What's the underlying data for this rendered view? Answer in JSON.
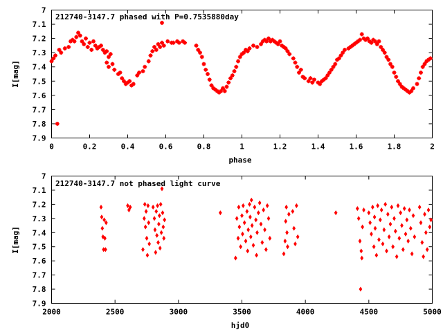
{
  "chart_data": [
    {
      "type": "scatter",
      "title": "212740-3147.7 phased with P=0.7535880day",
      "xlabel": "phase",
      "ylabel": "I[mag]",
      "xlim": [
        0,
        2
      ],
      "ylim": [
        7.9,
        7.0
      ],
      "y_inverted": true,
      "grid": false,
      "marker": "plus",
      "color": "#ff0000",
      "xticks": [
        "0",
        "0.2",
        "0.4",
        "0.6",
        "0.8",
        "1",
        "1.2",
        "1.4",
        "1.6",
        "1.8",
        "2"
      ],
      "yticks": [
        "7",
        "7.1",
        "7.2",
        "7.3",
        "7.4",
        "7.5",
        "7.6",
        "7.7",
        "7.8",
        "7.9"
      ],
      "points": [
        [
          0.0,
          7.36
        ],
        [
          0.01,
          7.34
        ],
        [
          0.02,
          7.32
        ],
        [
          0.03,
          7.8
        ],
        [
          0.04,
          7.28
        ],
        [
          0.05,
          7.3
        ],
        [
          0.07,
          7.27
        ],
        [
          0.09,
          7.26
        ],
        [
          0.1,
          7.22
        ],
        [
          0.11,
          7.21
        ],
        [
          0.12,
          7.22
        ],
        [
          0.13,
          7.19
        ],
        [
          0.14,
          7.16
        ],
        [
          0.15,
          7.18
        ],
        [
          0.16,
          7.22
        ],
        [
          0.17,
          7.24
        ],
        [
          0.18,
          7.2
        ],
        [
          0.19,
          7.26
        ],
        [
          0.2,
          7.23
        ],
        [
          0.21,
          7.28
        ],
        [
          0.22,
          7.22
        ],
        [
          0.23,
          7.25
        ],
        [
          0.24,
          7.27
        ],
        [
          0.25,
          7.26
        ],
        [
          0.26,
          7.25
        ],
        [
          0.27,
          7.28
        ],
        [
          0.28,
          7.3
        ],
        [
          0.29,
          7.29
        ],
        [
          0.3,
          7.33
        ],
        [
          0.31,
          7.31
        ],
        [
          0.29,
          7.37
        ],
        [
          0.3,
          7.4
        ],
        [
          0.32,
          7.38
        ],
        [
          0.33,
          7.42
        ],
        [
          0.35,
          7.45
        ],
        [
          0.36,
          7.44
        ],
        [
          0.37,
          7.48
        ],
        [
          0.38,
          7.5
        ],
        [
          0.39,
          7.52
        ],
        [
          0.4,
          7.51
        ],
        [
          0.41,
          7.5
        ],
        [
          0.42,
          7.53
        ],
        [
          0.43,
          7.52
        ],
        [
          0.45,
          7.46
        ],
        [
          0.46,
          7.44
        ],
        [
          0.48,
          7.43
        ],
        [
          0.49,
          7.4
        ],
        [
          0.51,
          7.36
        ],
        [
          0.52,
          7.32
        ],
        [
          0.53,
          7.29
        ],
        [
          0.54,
          7.26
        ],
        [
          0.55,
          7.28
        ],
        [
          0.56,
          7.24
        ],
        [
          0.57,
          7.26
        ],
        [
          0.58,
          7.23
        ],
        [
          0.58,
          7.09
        ],
        [
          0.59,
          7.25
        ],
        [
          0.61,
          7.22
        ],
        [
          0.63,
          7.23
        ],
        [
          0.64,
          7.23
        ],
        [
          0.66,
          7.22
        ],
        [
          0.67,
          7.23
        ],
        [
          0.69,
          7.22
        ],
        [
          0.7,
          7.23
        ],
        [
          0.76,
          7.25
        ],
        [
          0.77,
          7.28
        ],
        [
          0.78,
          7.3
        ],
        [
          0.79,
          7.33
        ],
        [
          0.8,
          7.38
        ],
        [
          0.81,
          7.42
        ],
        [
          0.82,
          7.45
        ],
        [
          0.83,
          7.49
        ],
        [
          0.84,
          7.53
        ],
        [
          0.85,
          7.55
        ],
        [
          0.86,
          7.56
        ],
        [
          0.87,
          7.57
        ],
        [
          0.88,
          7.58
        ],
        [
          0.89,
          7.57
        ],
        [
          0.9,
          7.55
        ],
        [
          0.91,
          7.57
        ],
        [
          0.92,
          7.54
        ],
        [
          0.93,
          7.51
        ],
        [
          0.94,
          7.48
        ],
        [
          0.95,
          7.46
        ],
        [
          0.96,
          7.43
        ],
        [
          0.97,
          7.4
        ],
        [
          0.98,
          7.36
        ],
        [
          0.99,
          7.33
        ],
        [
          1.0,
          7.31
        ],
        [
          1.01,
          7.3
        ],
        [
          1.02,
          7.28
        ],
        [
          1.03,
          7.29
        ],
        [
          1.04,
          7.27
        ],
        [
          1.06,
          7.25
        ],
        [
          1.08,
          7.26
        ],
        [
          1.1,
          7.24
        ],
        [
          1.11,
          7.22
        ],
        [
          1.12,
          7.21
        ],
        [
          1.13,
          7.22
        ],
        [
          1.14,
          7.2
        ],
        [
          1.15,
          7.22
        ],
        [
          1.16,
          7.21
        ],
        [
          1.17,
          7.22
        ],
        [
          1.18,
          7.23
        ],
        [
          1.19,
          7.24
        ],
        [
          1.2,
          7.22
        ],
        [
          1.21,
          7.25
        ],
        [
          1.22,
          7.26
        ],
        [
          1.23,
          7.27
        ],
        [
          1.24,
          7.29
        ],
        [
          1.25,
          7.31
        ],
        [
          1.27,
          7.34
        ],
        [
          1.28,
          7.37
        ],
        [
          1.29,
          7.4
        ],
        [
          1.3,
          7.44
        ],
        [
          1.31,
          7.42
        ],
        [
          1.32,
          7.47
        ],
        [
          1.33,
          7.48
        ],
        [
          1.35,
          7.5
        ],
        [
          1.36,
          7.48
        ],
        [
          1.37,
          7.51
        ],
        [
          1.38,
          7.49
        ],
        [
          1.4,
          7.51
        ],
        [
          1.41,
          7.52
        ],
        [
          1.42,
          7.5
        ],
        [
          1.43,
          7.49
        ],
        [
          1.44,
          7.48
        ],
        [
          1.45,
          7.46
        ],
        [
          1.46,
          7.44
        ],
        [
          1.47,
          7.42
        ],
        [
          1.48,
          7.4
        ],
        [
          1.49,
          7.38
        ],
        [
          1.5,
          7.35
        ],
        [
          1.51,
          7.34
        ],
        [
          1.52,
          7.32
        ],
        [
          1.53,
          7.3
        ],
        [
          1.54,
          7.28
        ],
        [
          1.56,
          7.27
        ],
        [
          1.57,
          7.26
        ],
        [
          1.58,
          7.25
        ],
        [
          1.59,
          7.24
        ],
        [
          1.6,
          7.23
        ],
        [
          1.61,
          7.22
        ],
        [
          1.62,
          7.21
        ],
        [
          1.63,
          7.17
        ],
        [
          1.64,
          7.2
        ],
        [
          1.65,
          7.21
        ],
        [
          1.66,
          7.2
        ],
        [
          1.67,
          7.22
        ],
        [
          1.68,
          7.23
        ],
        [
          1.69,
          7.21
        ],
        [
          1.7,
          7.22
        ],
        [
          1.71,
          7.24
        ],
        [
          1.72,
          7.22
        ],
        [
          1.73,
          7.26
        ],
        [
          1.74,
          7.28
        ],
        [
          1.75,
          7.3
        ],
        [
          1.76,
          7.33
        ],
        [
          1.77,
          7.35
        ],
        [
          1.78,
          7.38
        ],
        [
          1.79,
          7.4
        ],
        [
          1.8,
          7.44
        ],
        [
          1.81,
          7.47
        ],
        [
          1.82,
          7.5
        ],
        [
          1.83,
          7.52
        ],
        [
          1.84,
          7.54
        ],
        [
          1.85,
          7.55
        ],
        [
          1.86,
          7.56
        ],
        [
          1.87,
          7.57
        ],
        [
          1.88,
          7.58
        ],
        [
          1.89,
          7.57
        ],
        [
          1.9,
          7.55
        ],
        [
          1.92,
          7.52
        ],
        [
          1.93,
          7.48
        ],
        [
          1.94,
          7.44
        ],
        [
          1.95,
          7.4
        ],
        [
          1.96,
          7.38
        ],
        [
          1.97,
          7.36
        ],
        [
          1.98,
          7.35
        ],
        [
          1.99,
          7.34
        ]
      ]
    },
    {
      "type": "scatter",
      "title": "212740-3147.7 not phased light curve",
      "xlabel": "hjd0",
      "ylabel": "I[mag]",
      "xlim": [
        2000,
        5000
      ],
      "ylim": [
        7.9,
        7.0
      ],
      "y_inverted": true,
      "grid": false,
      "marker": "diamond",
      "color": "#ff0000",
      "xticks": [
        "2000",
        "2500",
        "3000",
        "3500",
        "4000",
        "4500",
        "5000"
      ],
      "yticks": [
        "7",
        "7.1",
        "7.2",
        "7.3",
        "7.4",
        "7.5",
        "7.6",
        "7.7",
        "7.8",
        "7.9"
      ],
      "points": [
        [
          2390,
          7.22
        ],
        [
          2395,
          7.29
        ],
        [
          2400,
          7.37
        ],
        [
          2405,
          7.43
        ],
        [
          2410,
          7.52
        ],
        [
          2415,
          7.31
        ],
        [
          2420,
          7.44
        ],
        [
          2425,
          7.52
        ],
        [
          2430,
          7.33
        ],
        [
          2600,
          7.21
        ],
        [
          2610,
          7.24
        ],
        [
          2620,
          7.22
        ],
        [
          2720,
          7.52
        ],
        [
          2730,
          7.3
        ],
        [
          2735,
          7.2
        ],
        [
          2740,
          7.36
        ],
        [
          2745,
          7.25
        ],
        [
          2750,
          7.44
        ],
        [
          2755,
          7.56
        ],
        [
          2760,
          7.21
        ],
        [
          2765,
          7.33
        ],
        [
          2770,
          7.48
        ],
        [
          2800,
          7.22
        ],
        [
          2810,
          7.3
        ],
        [
          2815,
          7.38
        ],
        [
          2820,
          7.54
        ],
        [
          2825,
          7.25
        ],
        [
          2830,
          7.42
        ],
        [
          2835,
          7.21
        ],
        [
          2840,
          7.47
        ],
        [
          2845,
          7.34
        ],
        [
          2850,
          7.28
        ],
        [
          2855,
          7.51
        ],
        [
          2860,
          7.2
        ],
        [
          2865,
          7.4
        ],
        [
          2870,
          7.09
        ],
        [
          2875,
          7.26
        ],
        [
          2880,
          7.36
        ],
        [
          2885,
          7.44
        ],
        [
          2890,
          7.31
        ],
        [
          3330,
          7.26
        ],
        [
          3450,
          7.58
        ],
        [
          3460,
          7.3
        ],
        [
          3470,
          7.44
        ],
        [
          3475,
          7.22
        ],
        [
          3480,
          7.36
        ],
        [
          3490,
          7.5
        ],
        [
          3500,
          7.28
        ],
        [
          3505,
          7.41
        ],
        [
          3510,
          7.21
        ],
        [
          3520,
          7.33
        ],
        [
          3530,
          7.46
        ],
        [
          3540,
          7.25
        ],
        [
          3545,
          7.53
        ],
        [
          3550,
          7.38
        ],
        [
          3560,
          7.2
        ],
        [
          3565,
          7.29
        ],
        [
          3570,
          7.43
        ],
        [
          3575,
          7.17
        ],
        [
          3580,
          7.35
        ],
        [
          3590,
          7.49
        ],
        [
          3600,
          7.22
        ],
        [
          3610,
          7.31
        ],
        [
          3615,
          7.56
        ],
        [
          3620,
          7.4
        ],
        [
          3630,
          7.26
        ],
        [
          3640,
          7.19
        ],
        [
          3650,
          7.34
        ],
        [
          3660,
          7.47
        ],
        [
          3670,
          7.24
        ],
        [
          3680,
          7.38
        ],
        [
          3690,
          7.52
        ],
        [
          3700,
          7.21
        ],
        [
          3710,
          7.3
        ],
        [
          3720,
          7.44
        ],
        [
          3830,
          7.55
        ],
        [
          3840,
          7.46
        ],
        [
          3845,
          7.32
        ],
        [
          3850,
          7.22
        ],
        [
          3855,
          7.4
        ],
        [
          3860,
          7.5
        ],
        [
          3870,
          7.27
        ],
        [
          3900,
          7.25
        ],
        [
          3910,
          7.37
        ],
        [
          3920,
          7.48
        ],
        [
          3930,
          7.21
        ],
        [
          3940,
          7.43
        ],
        [
          4240,
          7.26
        ],
        [
          4410,
          7.23
        ],
        [
          4420,
          7.3
        ],
        [
          4430,
          7.46
        ],
        [
          4435,
          7.8
        ],
        [
          4440,
          7.53
        ],
        [
          4445,
          7.58
        ],
        [
          4450,
          7.36
        ],
        [
          4460,
          7.24
        ],
        [
          4500,
          7.26
        ],
        [
          4510,
          7.33
        ],
        [
          4520,
          7.41
        ],
        [
          4530,
          7.22
        ],
        [
          4540,
          7.5
        ],
        [
          4545,
          7.29
        ],
        [
          4550,
          7.37
        ],
        [
          4560,
          7.56
        ],
        [
          4570,
          7.21
        ],
        [
          4580,
          7.45
        ],
        [
          4590,
          7.31
        ],
        [
          4600,
          7.24
        ],
        [
          4610,
          7.48
        ],
        [
          4620,
          7.38
        ],
        [
          4630,
          7.2
        ],
        [
          4640,
          7.53
        ],
        [
          4650,
          7.27
        ],
        [
          4660,
          7.43
        ],
        [
          4670,
          7.34
        ],
        [
          4680,
          7.22
        ],
        [
          4690,
          7.5
        ],
        [
          4700,
          7.3
        ],
        [
          4710,
          7.39
        ],
        [
          4720,
          7.57
        ],
        [
          4730,
          7.21
        ],
        [
          4740,
          7.44
        ],
        [
          4750,
          7.26
        ],
        [
          4760,
          7.35
        ],
        [
          4770,
          7.52
        ],
        [
          4780,
          7.23
        ],
        [
          4790,
          7.41
        ],
        [
          4800,
          7.31
        ],
        [
          4810,
          7.46
        ],
        [
          4820,
          7.24
        ],
        [
          4830,
          7.37
        ],
        [
          4840,
          7.55
        ],
        [
          4850,
          7.28
        ],
        [
          4860,
          7.43
        ],
        [
          4900,
          7.22
        ],
        [
          4910,
          7.33
        ],
        [
          4920,
          7.47
        ],
        [
          4930,
          7.57
        ],
        [
          4940,
          7.27
        ],
        [
          4950,
          7.4
        ],
        [
          4960,
          7.52
        ],
        [
          4970,
          7.24
        ],
        [
          4980,
          7.36
        ],
        [
          4990,
          7.31
        ]
      ]
    }
  ]
}
